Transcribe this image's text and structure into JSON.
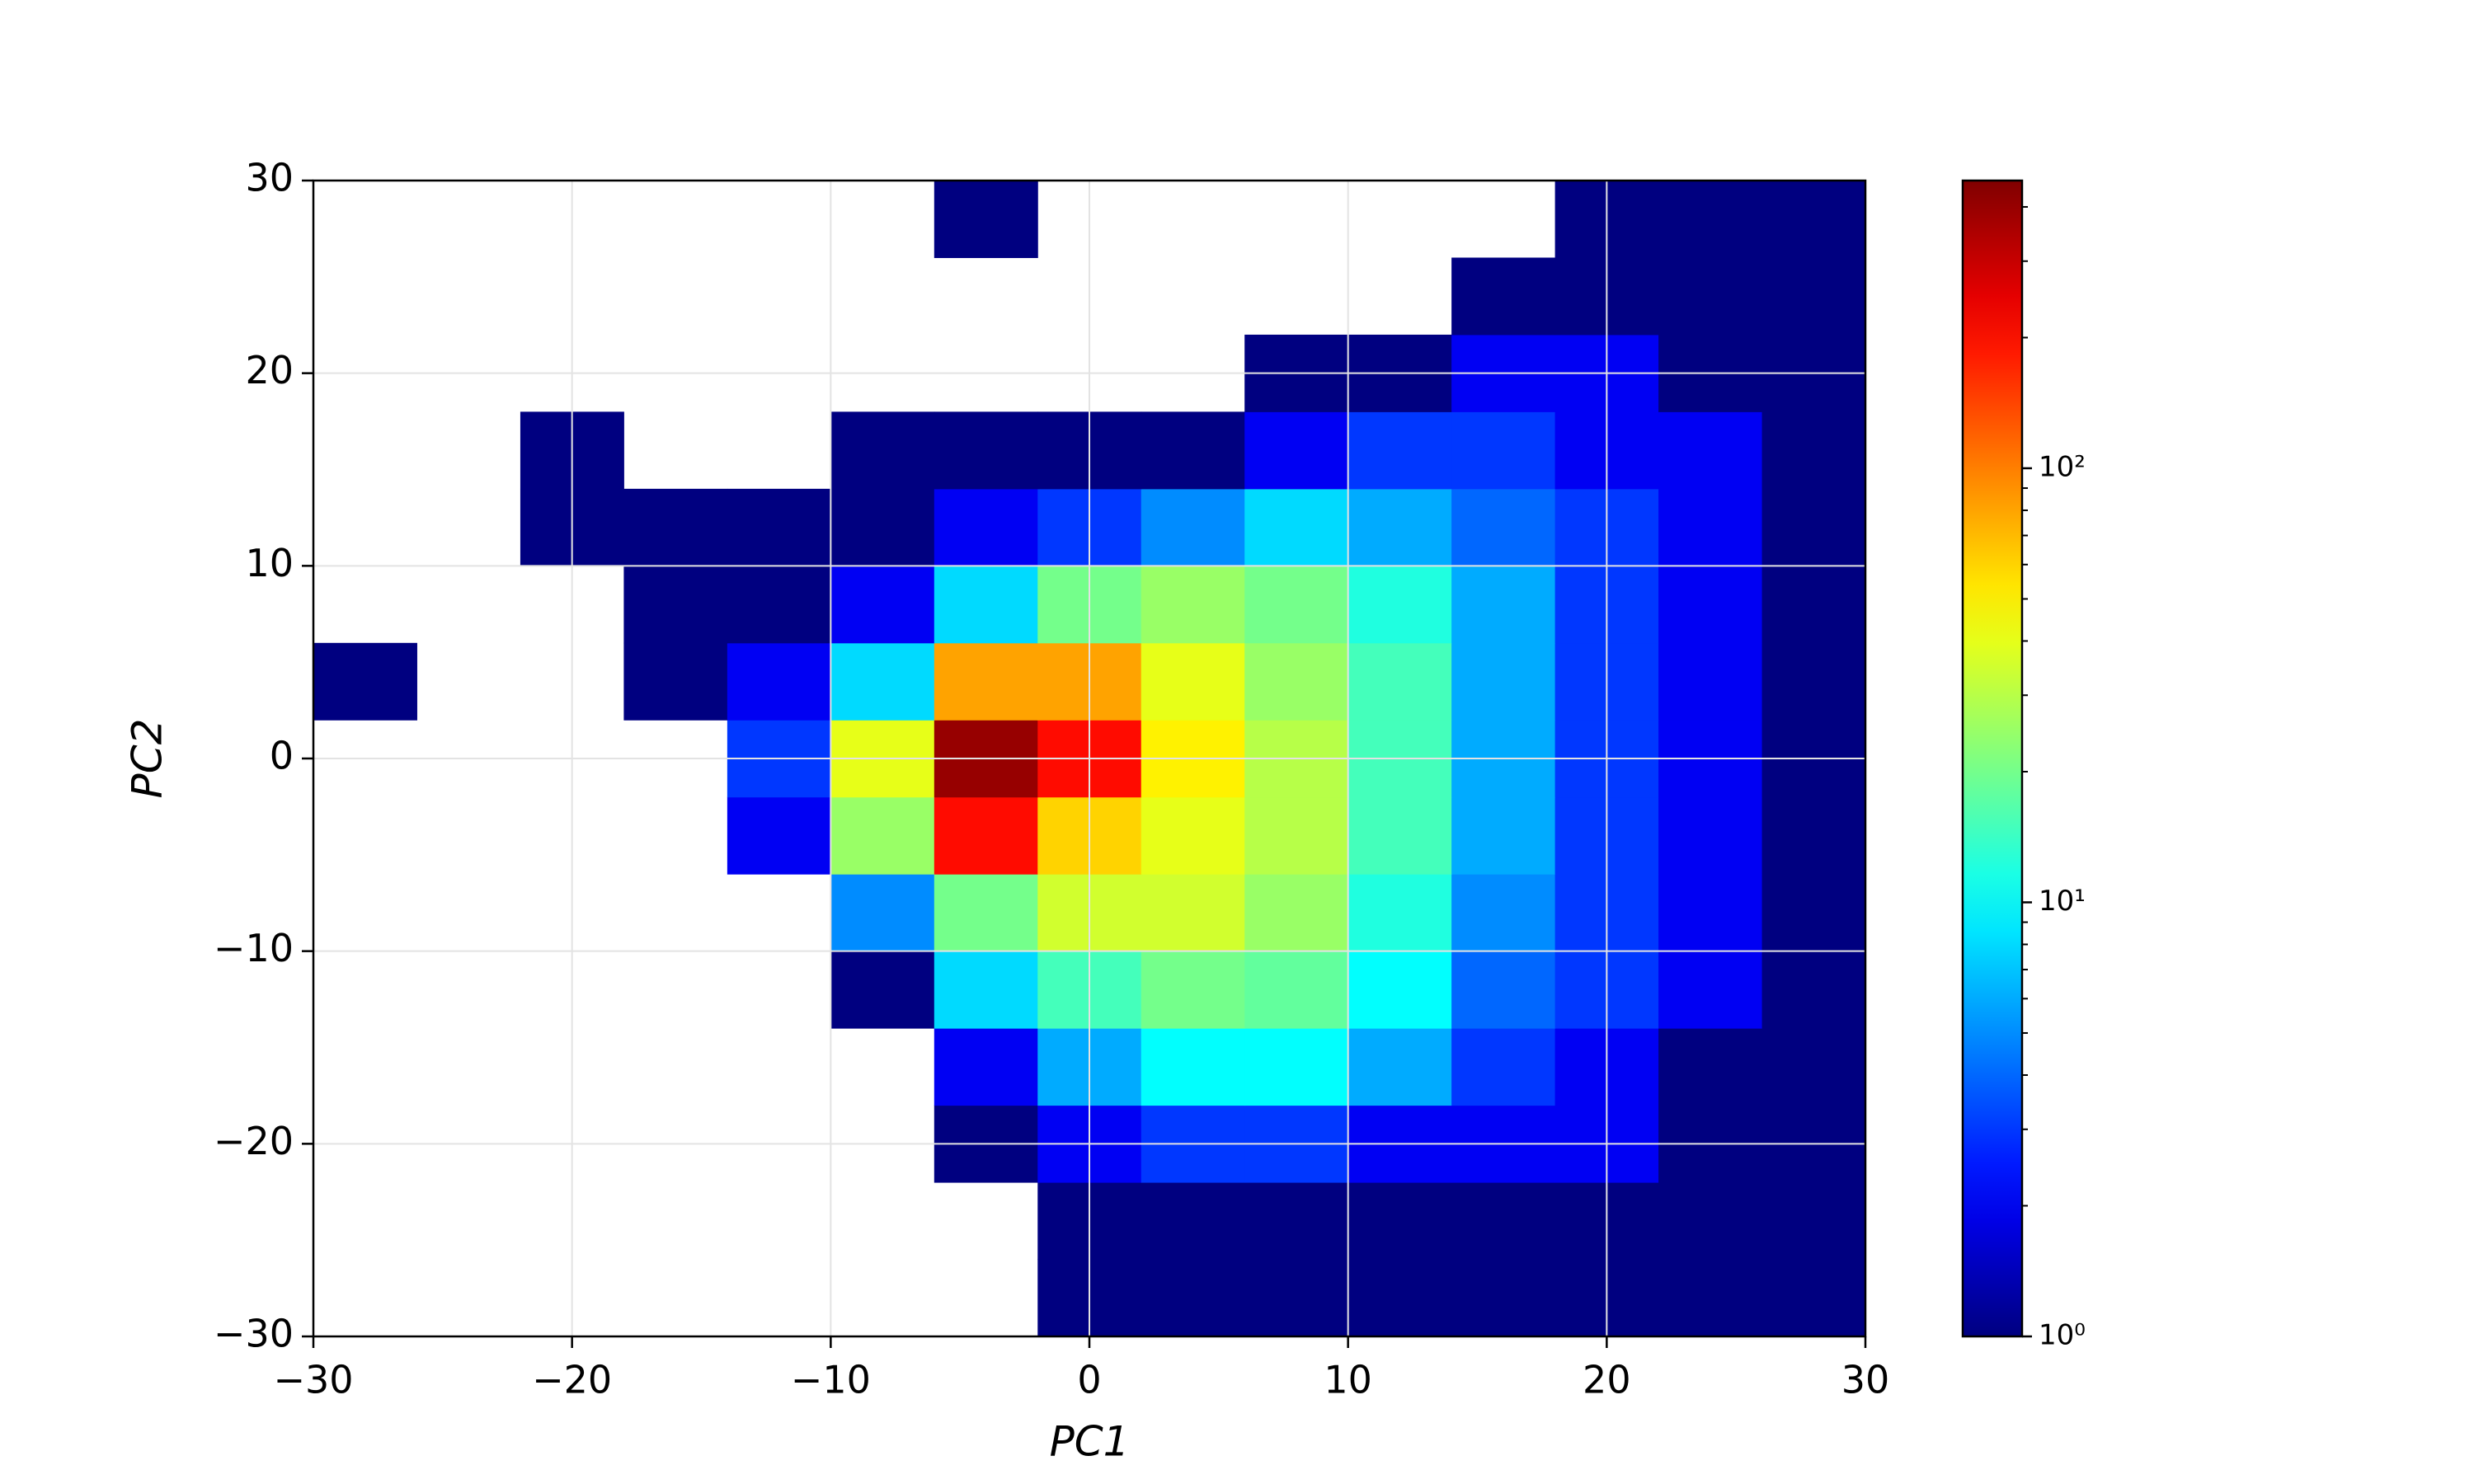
{
  "chart_data": {
    "type": "hist2d",
    "x_label": "PC1",
    "y_label": "PC2",
    "colormap": "jet",
    "log_color": true,
    "grid": true,
    "xbins": [
      -30,
      -26,
      -22,
      -18,
      -14,
      -10,
      -6,
      -2,
      2,
      6,
      10,
      14,
      18,
      22,
      26,
      30
    ],
    "ybins": [
      -30,
      -26,
      -22,
      -18,
      -14,
      -10,
      -6,
      -2,
      2,
      6,
      10,
      14,
      18,
      22,
      26,
      30
    ],
    "counts": [
      [
        0,
        0,
        0,
        0,
        0,
        0,
        0,
        1,
        1,
        1,
        1,
        1,
        1,
        1,
        1
      ],
      [
        0,
        0,
        0,
        0,
        0,
        0,
        0,
        1,
        1,
        1,
        1,
        1,
        1,
        1,
        1
      ],
      [
        0,
        0,
        0,
        0,
        0,
        0,
        1,
        2,
        3,
        3,
        2,
        2,
        2,
        1,
        1
      ],
      [
        0,
        0,
        0,
        0,
        0,
        0,
        2,
        6,
        10,
        10,
        6,
        3,
        2,
        1,
        1
      ],
      [
        0,
        0,
        0,
        0,
        0,
        1,
        8,
        15,
        20,
        18,
        10,
        4,
        3,
        2,
        1
      ],
      [
        0,
        0,
        0,
        0,
        0,
        5,
        20,
        35,
        35,
        25,
        12,
        5,
        3,
        2,
        1
      ],
      [
        0,
        0,
        0,
        0,
        2,
        25,
        200,
        60,
        40,
        30,
        15,
        6,
        3,
        2,
        1
      ],
      [
        0,
        0,
        0,
        0,
        3,
        40,
        400,
        200,
        50,
        30,
        15,
        6,
        3,
        2,
        1
      ],
      [
        1,
        0,
        0,
        1,
        2,
        8,
        80,
        80,
        40,
        25,
        15,
        6,
        3,
        2,
        1
      ],
      [
        0,
        0,
        0,
        1,
        1,
        2,
        8,
        20,
        25,
        20,
        12,
        6,
        3,
        2,
        1
      ],
      [
        0,
        0,
        1,
        1,
        1,
        1,
        2,
        3,
        5,
        8,
        6,
        4,
        3,
        2,
        1
      ],
      [
        0,
        0,
        1,
        0,
        0,
        1,
        1,
        1,
        1,
        2,
        3,
        3,
        2,
        2,
        1
      ],
      [
        0,
        0,
        0,
        0,
        0,
        0,
        0,
        0,
        0,
        1,
        1,
        2,
        2,
        1,
        1
      ],
      [
        0,
        0,
        0,
        0,
        0,
        0,
        0,
        0,
        0,
        0,
        0,
        1,
        1,
        1,
        1
      ],
      [
        0,
        0,
        0,
        0,
        0,
        0,
        1,
        0,
        0,
        0,
        0,
        0,
        1,
        1,
        1
      ]
    ],
    "xlim": [
      -30,
      30
    ],
    "ylim": [
      -30,
      30
    ],
    "xticks": [
      {
        "value": -30,
        "label": "−30"
      },
      {
        "value": -20,
        "label": "−20"
      },
      {
        "value": -10,
        "label": "−10"
      },
      0,
      10,
      20,
      30
    ],
    "yticks": [
      {
        "value": -30,
        "label": "−30"
      },
      {
        "value": -20,
        "label": "−20"
      },
      {
        "value": -10,
        "label": "−10"
      },
      0,
      10,
      20,
      30
    ],
    "clim": [
      1,
      460
    ],
    "cticks": [
      {
        "value": 1,
        "label": "10⁰"
      },
      {
        "value": 10,
        "label": "10¹"
      },
      {
        "value": 100,
        "label": "10²"
      }
    ],
    "cminorticks": [
      2,
      3,
      4,
      5,
      6,
      7,
      8,
      9,
      20,
      30,
      40,
      50,
      60,
      70,
      80,
      90,
      200,
      300,
      400
    ]
  }
}
